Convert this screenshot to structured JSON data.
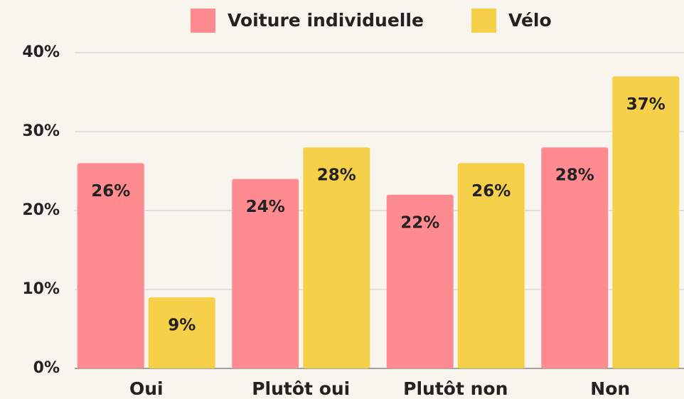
{
  "chart_data": {
    "type": "bar",
    "categories": [
      "Oui",
      "Plutôt oui",
      "Plutôt non",
      "Non"
    ],
    "series": [
      {
        "name": "Voiture individuelle",
        "color": "#ff8a8f",
        "values": [
          26,
          24,
          22,
          28
        ],
        "value_labels": [
          "26%",
          "24%",
          "22%",
          "28%"
        ]
      },
      {
        "name": "Vélo",
        "color": "#f7d04a",
        "values": [
          9,
          28,
          26,
          37
        ],
        "value_labels": [
          "9%",
          "28%",
          "26%",
          "37%"
        ]
      }
    ],
    "ylim": [
      0,
      40
    ],
    "yticks": [
      {
        "value": 0,
        "label": "0%"
      },
      {
        "value": 10,
        "label": "10%"
      },
      {
        "value": 20,
        "label": "20%"
      },
      {
        "value": 30,
        "label": "30%"
      },
      {
        "value": 40,
        "label": "40%"
      }
    ],
    "grid": true,
    "legend": "top"
  }
}
